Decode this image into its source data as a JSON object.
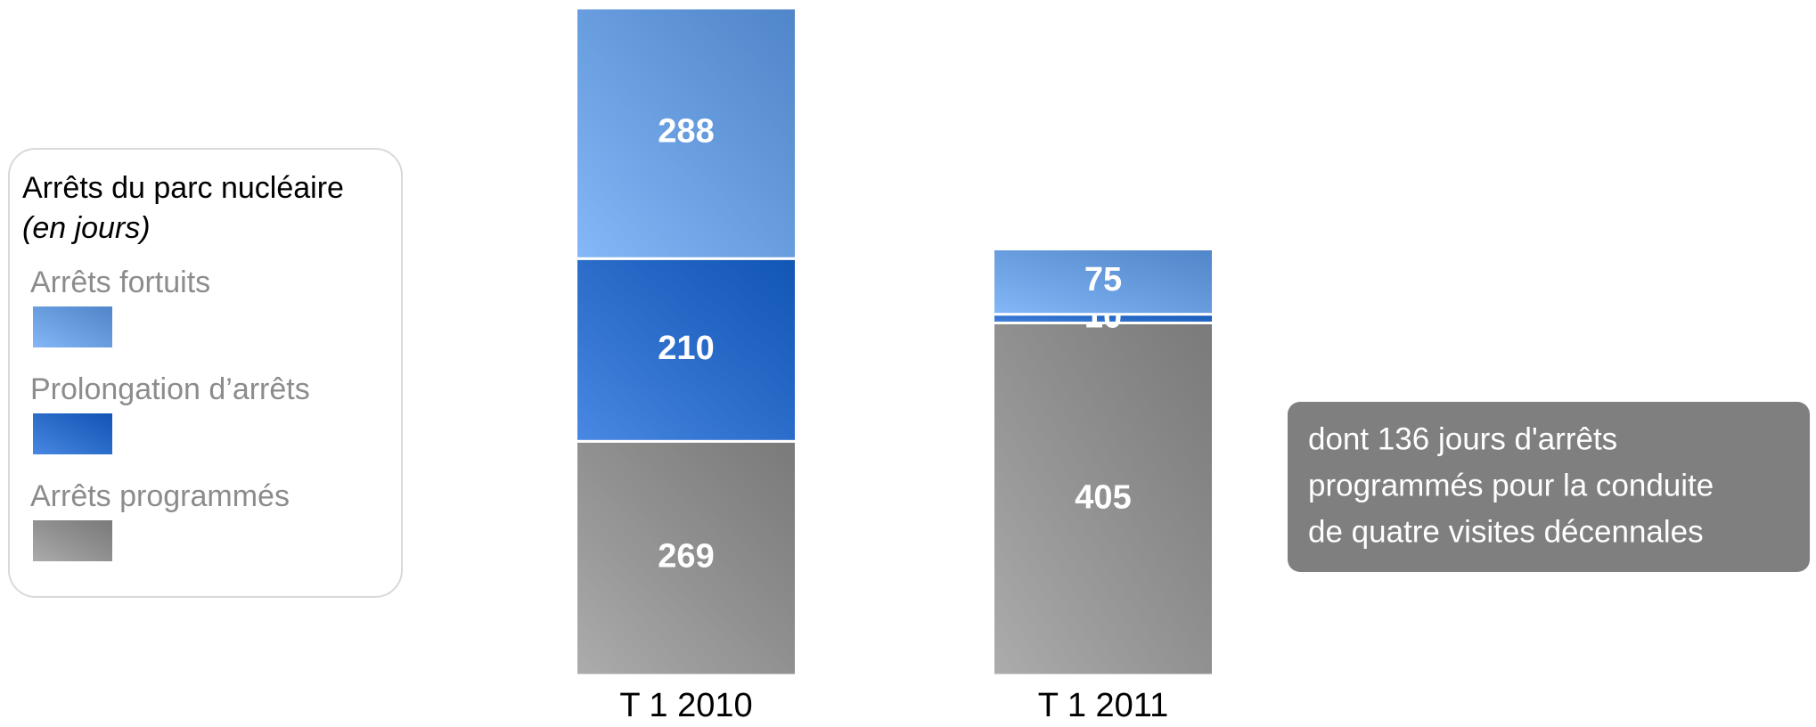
{
  "chart_data": {
    "type": "stacked_bar",
    "title": "Arrêts du parc nucléaire",
    "subtitle": "(en jours)",
    "categories": [
      "T 1 2010",
      "T 1 2011"
    ],
    "series": [
      {
        "name": "Arrêts programmés",
        "color": "#959595",
        "values": [
          269,
          405
        ]
      },
      {
        "name": "Prolongation d’arrêts",
        "color": "#1668dc",
        "values": [
          210,
          10
        ]
      },
      {
        "name": "Arrêts fortuits",
        "color": "#62a4f6",
        "values": [
          288,
          75
        ]
      }
    ],
    "annotation": [
      "dont 136 jours d'arrêts",
      "programmés pour la conduite",
      "de quatre visites décennales"
    ]
  }
}
